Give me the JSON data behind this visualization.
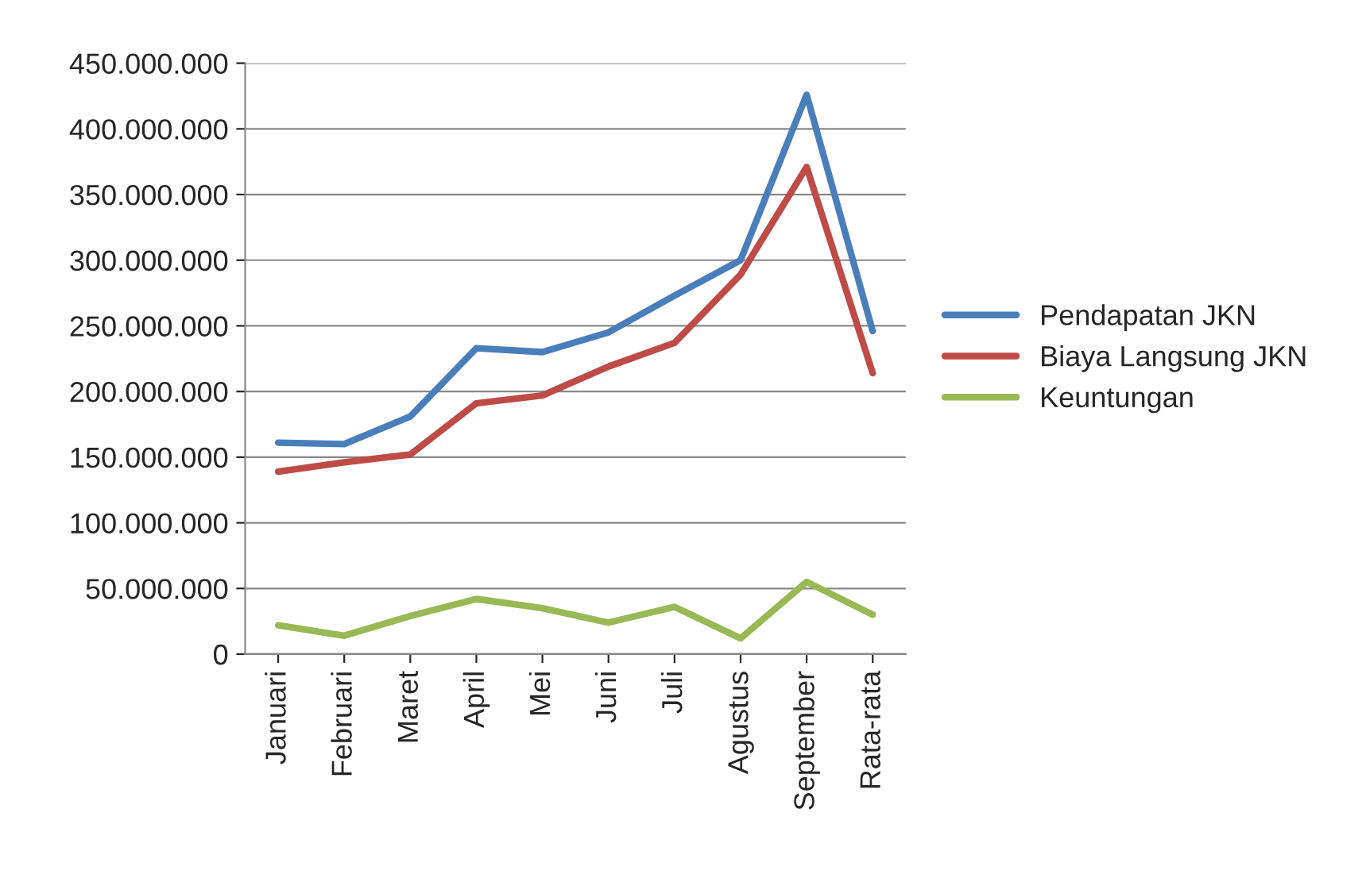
{
  "chart_data": {
    "type": "line",
    "categories": [
      "Januari",
      "Februari",
      "Maret",
      "April",
      "Mei",
      "Juni",
      "Juli",
      "Agustus",
      "September",
      "Rata-rata"
    ],
    "series": [
      {
        "name": "Pendapatan JKN",
        "color": "#4a7ebb",
        "values": [
          161000000,
          160000000,
          181000000,
          233000000,
          230000000,
          245000000,
          273000000,
          300000000,
          426000000,
          246000000
        ]
      },
      {
        "name": "Biaya Langsung JKN",
        "color": "#be4b48",
        "values": [
          139000000,
          146000000,
          152000000,
          191000000,
          197000000,
          219000000,
          237000000,
          289000000,
          371000000,
          214000000
        ]
      },
      {
        "name": "Keuntungan",
        "color": "#98b954",
        "values": [
          22000000,
          14000000,
          29000000,
          42000000,
          35000000,
          24000000,
          36000000,
          12000000,
          55000000,
          30000000
        ]
      }
    ],
    "ylim": [
      0,
      450000000
    ],
    "yticks": [
      0,
      {
        "value": 50000000,
        "label": "50.000.000"
      },
      {
        "value": 100000000,
        "label": "100.000.000"
      },
      {
        "value": 150000000,
        "label": "150.000.000"
      },
      {
        "value": 200000000,
        "label": "200.000.000"
      },
      {
        "value": 250000000,
        "label": "250.000.000"
      },
      {
        "value": 300000000,
        "label": "300.000.000"
      },
      {
        "value": 350000000,
        "label": "350.000.000"
      },
      {
        "value": 400000000,
        "label": "400.000.000"
      },
      {
        "value": 450000000,
        "label": "450.000.000"
      }
    ],
    "grid": "y",
    "legend": "right",
    "marker": "none",
    "line_style": "solid"
  }
}
